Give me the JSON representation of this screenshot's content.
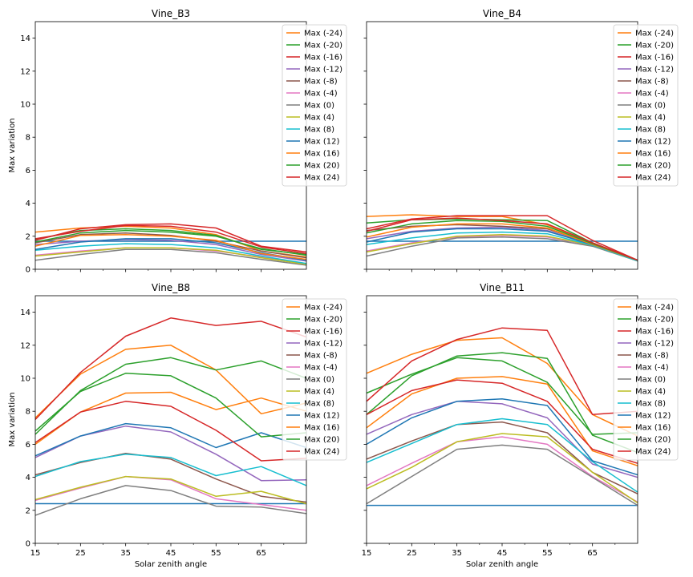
{
  "figure": {
    "ylabel": "Max variation",
    "xlabel": "Solar zenith angle"
  },
  "chart_data": [
    {
      "type": "line",
      "title": "Vine_B3",
      "x": [
        15,
        25,
        35,
        45,
        55,
        65,
        75
      ],
      "xticks": [
        15,
        25,
        35,
        45,
        55,
        65
      ],
      "ylim": [
        0,
        15
      ],
      "yticks": [
        0,
        2,
        4,
        6,
        8,
        10,
        12,
        14
      ],
      "xlabel": "",
      "ylabel": "Max variation",
      "reference_line": {
        "y": 1.7,
        "color": "#1f77b4"
      },
      "legend_position": "top-right",
      "series": [
        {
          "name": "Max (-24)",
          "color": "#ff7f0e",
          "values": [
            2.25,
            2.5,
            2.6,
            2.5,
            2.1,
            1.1,
            0.75
          ]
        },
        {
          "name": "Max (-20)",
          "color": "#2ca02c",
          "values": [
            1.8,
            2.35,
            2.45,
            2.35,
            2.05,
            1.2,
            0.9
          ]
        },
        {
          "name": "Max (-16)",
          "color": "#d62728",
          "values": [
            1.75,
            2.45,
            2.7,
            2.75,
            2.5,
            1.4,
            1.05
          ]
        },
        {
          "name": "Max (-12)",
          "color": "#9467bd",
          "values": [
            1.5,
            1.7,
            1.8,
            1.75,
            1.5,
            0.9,
            0.5
          ]
        },
        {
          "name": "Max (-8)",
          "color": "#8c564b",
          "values": [
            1.6,
            2.1,
            2.2,
            2.05,
            1.7,
            1.1,
            0.7
          ]
        },
        {
          "name": "Max (-4)",
          "color": "#e377c2",
          "values": [
            0.85,
            1.1,
            1.3,
            1.3,
            1.1,
            0.75,
            0.3
          ]
        },
        {
          "name": "Max (0)",
          "color": "#7f7f7f",
          "values": [
            0.55,
            0.9,
            1.2,
            1.2,
            1.0,
            0.6,
            0.25
          ]
        },
        {
          "name": "Max (4)",
          "color": "#bcbd22",
          "values": [
            0.8,
            1.05,
            1.3,
            1.3,
            1.15,
            0.7,
            0.3
          ]
        },
        {
          "name": "Max (8)",
          "color": "#17becf",
          "values": [
            1.15,
            1.4,
            1.55,
            1.5,
            1.3,
            0.8,
            0.35
          ]
        },
        {
          "name": "Max (12)",
          "color": "#1f77b4",
          "values": [
            1.2,
            1.65,
            1.85,
            1.85,
            1.6,
            1.0,
            0.55
          ]
        },
        {
          "name": "Max (16)",
          "color": "#ff7f0e",
          "values": [
            1.4,
            2.05,
            2.1,
            2.0,
            1.75,
            0.95,
            0.6
          ]
        },
        {
          "name": "Max (20)",
          "color": "#2ca02c",
          "values": [
            1.65,
            2.2,
            2.35,
            2.25,
            2.0,
            1.25,
            0.85
          ]
        },
        {
          "name": "Max (24)",
          "color": "#d62728",
          "values": [
            1.85,
            2.3,
            2.65,
            2.6,
            2.25,
            1.35,
            0.95
          ]
        }
      ]
    },
    {
      "type": "line",
      "title": "Vine_B4",
      "x": [
        15,
        25,
        35,
        45,
        55,
        65,
        75
      ],
      "xticks": [
        15,
        25,
        35,
        45,
        55,
        65
      ],
      "ylim": [
        0,
        15
      ],
      "yticks": [
        0,
        2,
        4,
        6,
        8,
        10,
        12,
        14
      ],
      "xlabel": "",
      "ylabel": "",
      "reference_line": {
        "y": 1.7,
        "color": "#1f77b4"
      },
      "legend_position": "top-right",
      "series": [
        {
          "name": "Max (-24)",
          "color": "#ff7f0e",
          "values": [
            3.2,
            3.3,
            3.2,
            3.2,
            2.7,
            1.5,
            0.55
          ]
        },
        {
          "name": "Max (-20)",
          "color": "#2ca02c",
          "values": [
            2.8,
            3.0,
            3.05,
            3.0,
            2.95,
            1.6,
            0.55
          ]
        },
        {
          "name": "Max (-16)",
          "color": "#d62728",
          "values": [
            2.45,
            3.05,
            3.25,
            3.25,
            3.25,
            1.75,
            0.55
          ]
        },
        {
          "name": "Max (-12)",
          "color": "#9467bd",
          "values": [
            1.85,
            2.3,
            2.5,
            2.55,
            2.35,
            1.5,
            0.55
          ]
        },
        {
          "name": "Max (-8)",
          "color": "#8c564b",
          "values": [
            2.35,
            2.6,
            2.7,
            2.6,
            2.45,
            1.55,
            0.55
          ]
        },
        {
          "name": "Max (-4)",
          "color": "#e377c2",
          "values": [
            1.1,
            1.6,
            1.95,
            2.05,
            1.95,
            1.45,
            0.5
          ]
        },
        {
          "name": "Max (0)",
          "color": "#7f7f7f",
          "values": [
            0.8,
            1.4,
            1.9,
            1.95,
            1.85,
            1.4,
            0.5
          ]
        },
        {
          "name": "Max (4)",
          "color": "#bcbd22",
          "values": [
            1.05,
            1.55,
            2.0,
            2.1,
            2.0,
            1.45,
            0.5
          ]
        },
        {
          "name": "Max (8)",
          "color": "#17becf",
          "values": [
            1.5,
            1.9,
            2.2,
            2.25,
            2.15,
            1.45,
            0.5
          ]
        },
        {
          "name": "Max (12)",
          "color": "#1f77b4",
          "values": [
            1.65,
            2.25,
            2.45,
            2.45,
            2.3,
            1.5,
            0.55
          ]
        },
        {
          "name": "Max (16)",
          "color": "#ff7f0e",
          "values": [
            1.95,
            2.55,
            2.75,
            2.75,
            2.5,
            1.5,
            0.55
          ]
        },
        {
          "name": "Max (20)",
          "color": "#2ca02c",
          "values": [
            2.2,
            2.75,
            2.95,
            2.9,
            2.6,
            1.55,
            0.55
          ]
        },
        {
          "name": "Max (24)",
          "color": "#d62728",
          "values": [
            2.3,
            3.0,
            3.1,
            2.95,
            2.75,
            1.6,
            0.55
          ]
        }
      ]
    },
    {
      "type": "line",
      "title": "Vine_B8",
      "x": [
        15,
        25,
        35,
        45,
        55,
        65,
        75
      ],
      "xticks": [
        15,
        25,
        35,
        45,
        55,
        65
      ],
      "ylim": [
        0,
        15
      ],
      "yticks": [
        0,
        2,
        4,
        6,
        8,
        10,
        12,
        14
      ],
      "xlabel": "Solar zenith angle",
      "ylabel": "Max variation",
      "reference_line": {
        "y": 2.4,
        "color": "#1f77b4"
      },
      "legend_position": "top-right",
      "series": [
        {
          "name": "Max (-24)",
          "color": "#ff7f0e",
          "values": [
            7.6,
            10.25,
            11.75,
            12.0,
            10.5,
            7.85,
            8.5
          ]
        },
        {
          "name": "Max (-20)",
          "color": "#2ca02c",
          "values": [
            6.6,
            9.25,
            10.85,
            11.25,
            10.5,
            11.05,
            10.0
          ]
        },
        {
          "name": "Max (-16)",
          "color": "#d62728",
          "values": [
            7.5,
            10.35,
            12.55,
            13.65,
            13.2,
            13.45,
            12.5
          ]
        },
        {
          "name": "Max (-12)",
          "color": "#9467bd",
          "values": [
            5.2,
            6.5,
            7.1,
            6.75,
            5.4,
            3.8,
            3.85
          ]
        },
        {
          "name": "Max (-8)",
          "color": "#8c564b",
          "values": [
            4.15,
            4.9,
            5.45,
            5.1,
            3.9,
            2.85,
            2.5
          ]
        },
        {
          "name": "Max (-4)",
          "color": "#e377c2",
          "values": [
            2.6,
            3.35,
            4.05,
            3.85,
            2.7,
            2.35,
            2.0
          ]
        },
        {
          "name": "Max (0)",
          "color": "#7f7f7f",
          "values": [
            1.7,
            2.7,
            3.5,
            3.2,
            2.25,
            2.2,
            1.8
          ]
        },
        {
          "name": "Max (4)",
          "color": "#bcbd22",
          "values": [
            2.65,
            3.4,
            4.05,
            3.9,
            2.85,
            3.15,
            2.4
          ]
        },
        {
          "name": "Max (8)",
          "color": "#17becf",
          "values": [
            4.05,
            4.95,
            5.4,
            5.2,
            4.1,
            4.65,
            3.5
          ]
        },
        {
          "name": "Max (12)",
          "color": "#1f77b4",
          "values": [
            5.3,
            6.5,
            7.25,
            7.0,
            5.8,
            6.7,
            5.8
          ]
        },
        {
          "name": "Max (16)",
          "color": "#ff7f0e",
          "values": [
            6.0,
            7.95,
            9.1,
            9.15,
            8.1,
            8.8,
            8.0
          ]
        },
        {
          "name": "Max (20)",
          "color": "#2ca02c",
          "values": [
            6.8,
            9.2,
            10.3,
            10.15,
            8.8,
            6.45,
            6.7
          ]
        },
        {
          "name": "Max (24)",
          "color": "#d62728",
          "values": [
            6.1,
            7.95,
            8.6,
            8.3,
            6.85,
            5.0,
            5.15
          ]
        }
      ]
    },
    {
      "type": "line",
      "title": "Vine_B11",
      "x": [
        15,
        25,
        35,
        45,
        55,
        65,
        75
      ],
      "xticks": [
        15,
        25,
        35,
        45,
        55,
        65
      ],
      "ylim": [
        0,
        15
      ],
      "yticks": [
        0,
        2,
        4,
        6,
        8,
        10,
        12,
        14
      ],
      "xlabel": "Solar zenith angle",
      "ylabel": "",
      "reference_line": {
        "y": 2.3,
        "color": "#1f77b4"
      },
      "legend_position": "top-right",
      "series": [
        {
          "name": "Max (-24)",
          "color": "#ff7f0e",
          "values": [
            10.3,
            11.45,
            12.3,
            12.45,
            10.9,
            7.8,
            6.5
          ]
        },
        {
          "name": "Max (-20)",
          "color": "#2ca02c",
          "values": [
            9.1,
            10.25,
            11.25,
            11.05,
            9.75,
            6.6,
            6.7
          ]
        },
        {
          "name": "Max (-16)",
          "color": "#d62728",
          "values": [
            8.6,
            11.05,
            12.35,
            13.05,
            12.9,
            7.8,
            8.0
          ]
        },
        {
          "name": "Max (-12)",
          "color": "#9467bd",
          "values": [
            6.6,
            7.8,
            8.6,
            8.45,
            7.6,
            4.8,
            4.0
          ]
        },
        {
          "name": "Max (-8)",
          "color": "#8c564b",
          "values": [
            5.1,
            6.2,
            7.2,
            7.35,
            6.7,
            4.3,
            3.0
          ]
        },
        {
          "name": "Max (-4)",
          "color": "#e377c2",
          "values": [
            3.5,
            4.85,
            6.15,
            6.45,
            6.0,
            4.05,
            2.5
          ]
        },
        {
          "name": "Max (0)",
          "color": "#7f7f7f",
          "values": [
            2.4,
            4.05,
            5.7,
            5.95,
            5.7,
            4.0,
            2.3
          ]
        },
        {
          "name": "Max (4)",
          "color": "#bcbd22",
          "values": [
            3.3,
            4.6,
            6.15,
            6.65,
            6.45,
            4.3,
            2.45
          ]
        },
        {
          "name": "Max (8)",
          "color": "#17becf",
          "values": [
            4.9,
            6.05,
            7.2,
            7.55,
            7.2,
            4.95,
            3.1
          ]
        },
        {
          "name": "Max (12)",
          "color": "#1f77b4",
          "values": [
            6.0,
            7.6,
            8.6,
            8.75,
            8.35,
            5.0,
            4.15
          ]
        },
        {
          "name": "Max (16)",
          "color": "#ff7f0e",
          "values": [
            7.0,
            9.05,
            10.0,
            10.1,
            9.65,
            5.6,
            4.7
          ]
        },
        {
          "name": "Max (20)",
          "color": "#2ca02c",
          "values": [
            7.8,
            10.15,
            11.35,
            11.55,
            11.2,
            6.55,
            5.5
          ]
        },
        {
          "name": "Max (24)",
          "color": "#d62728",
          "values": [
            7.8,
            9.25,
            9.9,
            9.7,
            8.6,
            5.7,
            4.85
          ]
        }
      ]
    }
  ]
}
